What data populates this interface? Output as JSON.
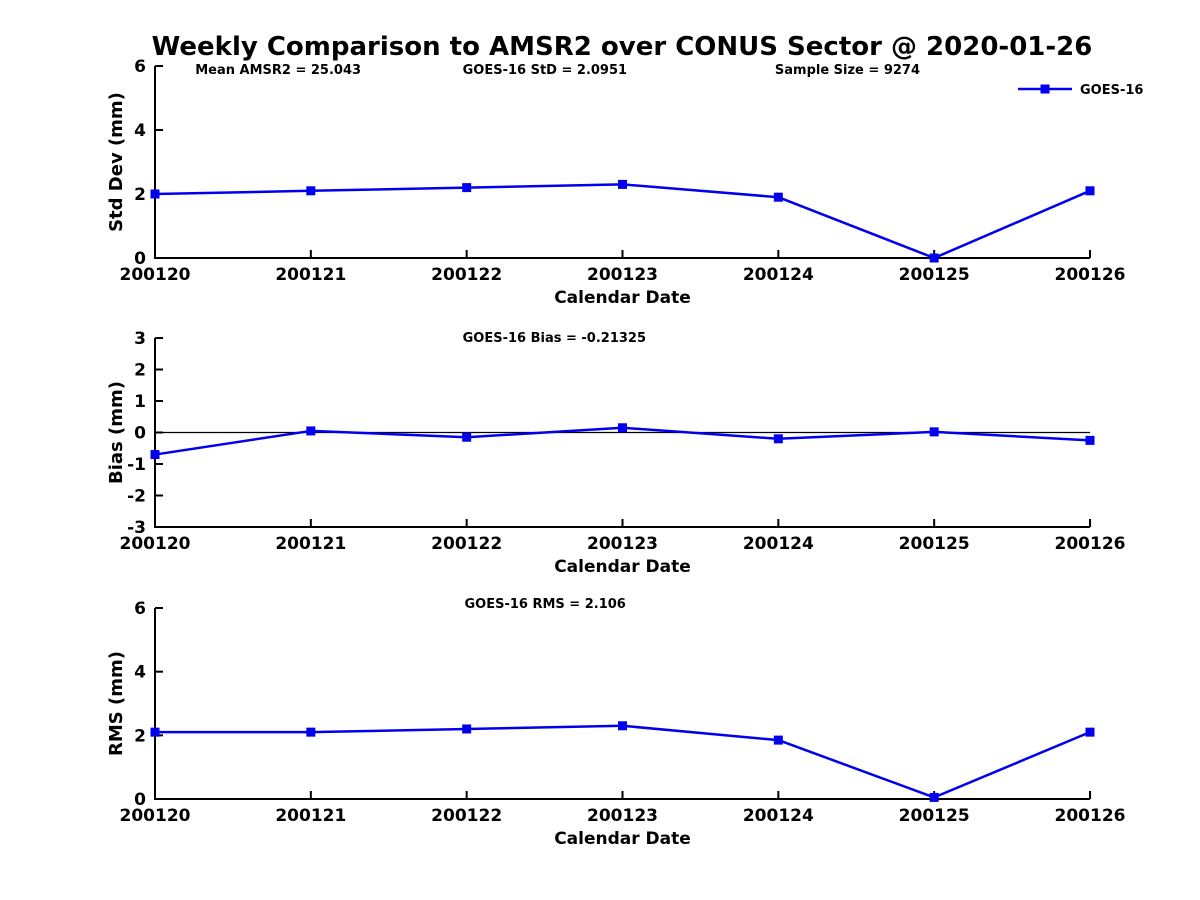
{
  "title": "Weekly Comparison to AMSR2 over CONUS Sector @ 2020-01-26",
  "colors": {
    "series": "#0000ee",
    "axis": "#000000",
    "text": "#000000",
    "background": "#ffffff"
  },
  "legend": {
    "label": "GOES-16",
    "marker": "square"
  },
  "chart_data": [
    {
      "type": "line",
      "categories": [
        "200120",
        "200121",
        "200122",
        "200123",
        "200124",
        "200125",
        "200126"
      ],
      "series": [
        {
          "name": "GOES-16",
          "values": [
            2.0,
            2.1,
            2.2,
            2.3,
            1.9,
            0.0,
            2.1
          ]
        }
      ],
      "xlabel": "Calendar Date",
      "ylabel": "Std Dev (mm)",
      "ylim": [
        0,
        6
      ],
      "yticks": [
        0,
        2,
        4,
        6
      ],
      "grid": false,
      "zero_line": false,
      "show_legend": true,
      "legend_position": "top-right",
      "annotations": [
        {
          "text": "Mean AMSR2 = 25.043",
          "xfrac": 0.043
        },
        {
          "text": "GOES-16 StD = 2.0951",
          "xfrac": 0.329
        },
        {
          "text": "Sample Size = 9274",
          "xfrac": 0.663
        }
      ]
    },
    {
      "type": "line",
      "categories": [
        "200120",
        "200121",
        "200122",
        "200123",
        "200124",
        "200125",
        "200126"
      ],
      "series": [
        {
          "name": "GOES-16",
          "values": [
            -0.7,
            0.05,
            -0.15,
            0.15,
            -0.2,
            0.02,
            -0.25
          ]
        }
      ],
      "xlabel": "Calendar Date",
      "ylabel": "Bias (mm)",
      "ylim": [
        -3,
        3
      ],
      "yticks": [
        -3,
        -2,
        -1,
        0,
        1,
        2,
        3
      ],
      "grid": false,
      "zero_line": true,
      "show_legend": false,
      "annotations": [
        {
          "text": "GOES-16 Bias  = -0.21325",
          "xfrac": 0.329
        }
      ]
    },
    {
      "type": "line",
      "categories": [
        "200120",
        "200121",
        "200122",
        "200123",
        "200124",
        "200125",
        "200126"
      ],
      "series": [
        {
          "name": "GOES-16",
          "values": [
            2.1,
            2.1,
            2.2,
            2.3,
            1.85,
            0.05,
            2.1
          ]
        }
      ],
      "xlabel": "Calendar Date",
      "ylabel": "RMS (mm)",
      "ylim": [
        0,
        6
      ],
      "yticks": [
        0,
        2,
        4,
        6
      ],
      "grid": false,
      "zero_line": false,
      "show_legend": false,
      "annotations": [
        {
          "text": "GOES-16 RMS = 2.106",
          "xfrac": 0.331
        }
      ]
    }
  ]
}
